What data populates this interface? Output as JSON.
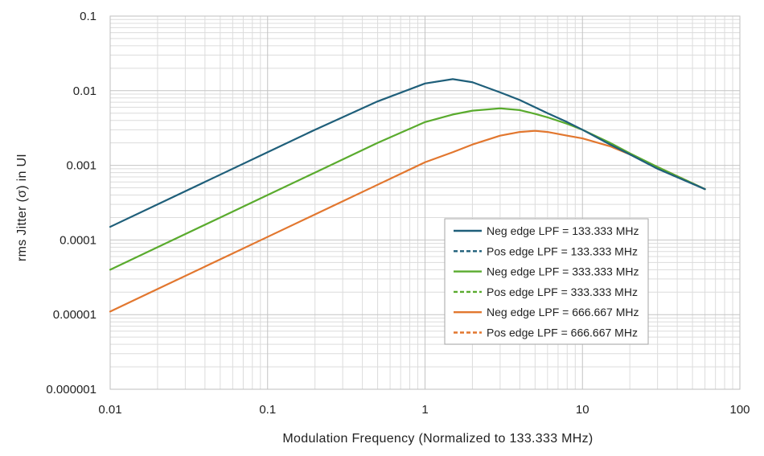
{
  "chart_data": {
    "type": "line",
    "title": "",
    "xlabel": "Modulation Frequency (Normalized to 133.333 MHz)",
    "ylabel": "rms Jitter (σ) in UI",
    "x_scale": "log",
    "y_scale": "log",
    "xlim": [
      0.01,
      100
    ],
    "ylim": [
      1e-06,
      0.1
    ],
    "x_tick_labels": [
      "0.01",
      "0.1",
      "1",
      "10",
      "100"
    ],
    "y_tick_labels": [
      "0.000001",
      "0.00001",
      "0.0001",
      "0.001",
      "0.01",
      "0.1"
    ],
    "grid": true,
    "legend_position": "right, inside plot area",
    "x": [
      0.01,
      0.02,
      0.05,
      0.1,
      0.2,
      0.5,
      1,
      1.5,
      2,
      3,
      4,
      5,
      6,
      8,
      10,
      15,
      20,
      30,
      60
    ],
    "series": [
      {
        "name": "Neg edge LPF = 133.333 MHz",
        "color": "#1f5f7a",
        "dash": "solid",
        "values": [
          0.00015,
          0.0003,
          0.00075,
          0.0015,
          0.003,
          0.0072,
          0.0125,
          0.0143,
          0.013,
          0.0095,
          0.0075,
          0.006,
          0.005,
          0.0038,
          0.003,
          0.0019,
          0.0014,
          0.0009,
          0.00048
        ]
      },
      {
        "name": "Pos edge LPF = 133.333 MHz",
        "color": "#1f5f7a",
        "dash": "dashed",
        "values": [
          0.00015,
          0.0003,
          0.00075,
          0.0015,
          0.003,
          0.0072,
          0.0125,
          0.0143,
          0.013,
          0.0095,
          0.0075,
          0.006,
          0.005,
          0.0038,
          0.003,
          0.0019,
          0.0014,
          0.0009,
          0.00048
        ]
      },
      {
        "name": "Neg edge LPF = 333.333 MHz",
        "color": "#5aab2e",
        "dash": "solid",
        "values": [
          4e-05,
          8e-05,
          0.0002,
          0.0004,
          0.0008,
          0.002,
          0.0038,
          0.0048,
          0.0054,
          0.0058,
          0.0055,
          0.0049,
          0.0044,
          0.0036,
          0.003,
          0.002,
          0.00145,
          0.00095,
          0.00048
        ]
      },
      {
        "name": "Pos edge LPF = 333.333 MHz",
        "color": "#5aab2e",
        "dash": "dashed",
        "values": [
          4e-05,
          8e-05,
          0.0002,
          0.0004,
          0.0008,
          0.002,
          0.0038,
          0.0048,
          0.0054,
          0.0058,
          0.0055,
          0.0049,
          0.0044,
          0.0036,
          0.003,
          0.002,
          0.00145,
          0.00095,
          0.00048
        ]
      },
      {
        "name": "Neg edge LPF = 666.667 MHz",
        "color": "#e2772f",
        "dash": "solid",
        "values": [
          1.1e-05,
          2.2e-05,
          5.5e-05,
          0.00011,
          0.00022,
          0.00055,
          0.0011,
          0.0015,
          0.0019,
          0.0025,
          0.0028,
          0.0029,
          0.0028,
          0.0025,
          0.0023,
          0.0018,
          0.0014,
          0.00095,
          0.00048
        ]
      },
      {
        "name": "Pos edge LPF = 666.667 MHz",
        "color": "#e2772f",
        "dash": "dashed",
        "values": [
          1.1e-05,
          2.2e-05,
          5.5e-05,
          0.00011,
          0.00022,
          0.00055,
          0.0011,
          0.0015,
          0.0019,
          0.0025,
          0.0028,
          0.0029,
          0.0028,
          0.0025,
          0.0023,
          0.0018,
          0.0014,
          0.00095,
          0.00048
        ]
      }
    ]
  }
}
